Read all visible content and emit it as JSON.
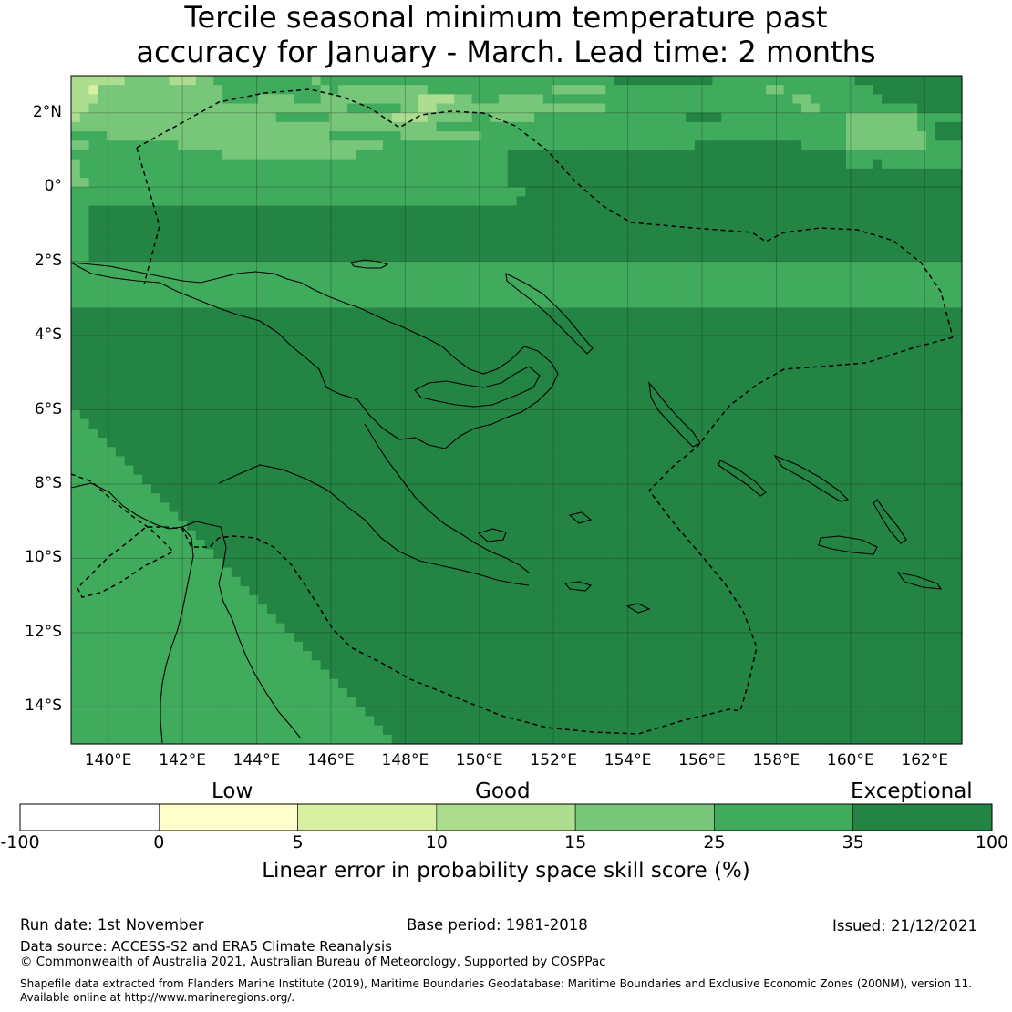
{
  "title": {
    "line1": "Tercile seasonal minimum temperature past",
    "line2": "accuracy for January - March. Lead time: 2 months"
  },
  "map": {
    "lon_ticks": [
      "140°E",
      "142°E",
      "144°E",
      "146°E",
      "148°E",
      "150°E",
      "152°E",
      "154°E",
      "156°E",
      "158°E",
      "160°E",
      "162°E"
    ],
    "lat_ticks": [
      "2°N",
      "0°",
      "2°S",
      "4°S",
      "6°S",
      "8°S",
      "10°S",
      "12°S",
      "14°S"
    ],
    "extent": {
      "lon": [
        139,
        163
      ],
      "lat": [
        -15,
        3
      ]
    },
    "grid": true,
    "palette": [
      "#ffffff",
      "#ffffcc",
      "#d9f0a3",
      "#addd8e",
      "#78c679",
      "#41ab5d",
      "#238443"
    ],
    "cell_rows": [
      "3333334444433344555555555554555555555555555555555555555555555666666666665555555555555555666666666666",
      "3324444444444444455555555555454444444444555555555555554444445555555555555555554455555555556666666666",
      "3334444444444444455554444555444444444443333445554444455555555555555555555555555554455555555666666666",
      "3344444444444444444444444444444555555443344444444444444444445555555555555555555555445555555555566666",
      "3444444444444444444444455555544444443333444445544444555555555555555556666555555555555554444444455555",
      "4444444444444444444444444444444444444444455555555555555555555555555555555555555555555554444444455666",
      "5555444444444444444444444444455555555444444444555555555555555555555555555555555555555554444444445666",
      "4455555555554444444444444444444444455555555555555555555555555555555555666666666666555554444444445555",
      "5555555555555555544444444444444455555555555555555666666666666666666666666666666666666665555555555555",
      "4555555555555555555555555555555555555555555555555666666666666666666666666666666666666665556555555555",
      "4555555555555555555555555555555555555555555555555666666666666666666666666666666666666666666666666666",
      "4455555555555555555555555555555555555555555555555666666666666666666666666666666666666666666666666666",
      "5555555555555555555555555555555555555555555555555556666666666666666666666666666666666666666666666666",
      "5555555555555555555555555555555555555555555555555566666666666666666666666666666666666666666666666666",
      "5566666666666666666666666666666666666666666666666666666666666666666666666666666666666666666666666666",
      "5566666666666666666666666666666666666666666666666666666666666666666666666666666666666666666666666666",
      "5566666666666666666666666666666666666666666666666666666666666666666666666666666666666666666666666666",
      "5566666666666666666666666666666666666666666666666666666666666666666666666666666666666666666666666666",
      "5566666666666666666666666666666666666666666666666666666666666666666666666666666666666666666666666666",
      "5566666666666666666666666666666666666666666666666666666666666666666666666666666666666666666666666666",
      "5555555555555555555555555555555555555555555555555555555555555555555555555555555555555555555555555555",
      "5555555555555555555555555555555555555555555555555555555555555555555555555555555555555555555555555555",
      "5555555555555555555555555555555555555555555555555555555555555555555555555555555555555555555555555555",
      "5555555555555555555555555555555555555555555555555555555555555555555555555555555555555555555555555555",
      "5555555555555555555555555555555555555555555555555555555555555555555555555555555555555555555555555555",
      "6666666666666666666666666666666666666666666666666666666666666666666666666666666666666666666666666666",
      "6666666666666666666666666666666666666666666666666666666666666666666666666666666666666666666666666666",
      "6666666666666666666666666666666666666666666666666666666666666666666666666666666666666666666666666666",
      "6666666666666666666666666666666666666666666666666666666666666666666666666666666666666666666666666666",
      "6666666666666666666666666666666666666666666666666666666666666666666666666666666666666666666666666666",
      "6666666666666666666666666666666666666666666666666666666666666666666666666666666666666666666666666666",
      "6666666666666666666666666666666666666666666666666666666666666666666666666666666666666666666666666666",
      "6666666666666666666666666666666666666666666666666666666666666666666666666666666666666666666666666666",
      "6666666666666666666666666666666666666666666666666666666666666666666666666666666666666666666666666666",
      "6666666666666666666666666666666666666666666666666666666666666666666666666666666666666666666666666666",
      "6666666666666666666666666666666666666666666666666666666666666666666666666666666666666666666666666666",
      "5666666666666666666666666666666666666666666666666666666666666666666666666666666666666666666666666666",
      "5566666666666666666666666666666666666666666666666666666666666666666666666666666666666666666666666666",
      "5556666666666666666666666666666666666666666666666666666666666666666666666666666666666666666666666666",
      "5555666666666666666666666666666666666666666666666666666666666666666666666666666666666666666666666666",
      "5555566666666666666666666666666666666666666666666666666666666666666666666666666666666666666666666666",
      "5555556666666666666666666666666666666666666666666666666666666666666666666666666666666666666666666666",
      "5555555666666666666666666666666666666666666666666666666666666666666666666666666666666666666666666666",
      "5555555566666666666666666666666666666666666666666666666666666666666666666666666666666666666666666666",
      "5555555556666666666666666666666666666666666666666666666666666666666666666666666666666666666666666666",
      "5555555555666666666666666666666666666666666666666666666666666666666666666666666666666666666666666666",
      "5555555555566666666666666666666666666666666666666666666666666666666666666666666666666666666666666666",
      "5555555555556666666666666666666666666666666666666666666666666666666666666666666666666666666666666666",
      "5555555555555666666666666666666666666666666666666666666666666666666666666666666666666666666666666666",
      "5555555555555566666666666666666666666666666666666666666666666666666666666666666666666666666666666666",
      "5555555555555556666666666666666666666666666666666666666666666666666666666666666666666666666666666666",
      "5555555555555555666666666666666666666666666666666666666666666666666666666666666666666666666666666666",
      "5555555555555555566666666666666666666666666666666666666666666666666666666666666666666666666666666666",
      "5555555555555555556666666666666666666666666666666666666666666666666666666666666666666666666666666666",
      "5555555555555555555666666666666666666666666666666666666666666666666666666666666666666666666666666666",
      "5555555555555555555566666666666666666666666666666666666666666666666666666666666666666666666666666666",
      "5555555555555555555556666666666666666666666666666666666666666666666666666666666666666666666666666666",
      "5555555555555555555555666666666666666666666666666666666666666666666666666666666666666666666666666666",
      "5555555555555555555555566666666666666666666666666666666666666666666666666666666666666666666666666666",
      "5555555555555555555555556666666666666666666666666666666666666666666666666666666666666666666666666666",
      "5555555555555555555555555666666666666666666666666666666666666666666666666666666666666666666666666666",
      "5555555555555555555555555566666666666666666666666666666666666666666666666666666666666666666666666666",
      "5555555555555555555555555556666666666666666666666666666666666666666666666666666666666666666666666666",
      "5555555555555555555555555555666666666666666666666666666666666666666666666666666666666666666666666666",
      "5555555555555555555555555555566666666666666666666666666666666666666666666666666666666666666666666666",
      "5555555555555555555555555555556666666666666666666666666666666666666666666666666666666666666666666666",
      "5555555555555555555555555555555666666666666666666666666666666666666666666666666666666666666666666666",
      "5555555555555555555555555555555566666666666666666666666666666666666666666666666666666666666666666666",
      "5555555555555555555555555555555556666666666666666666666666666666666666666666666666666666666666666666",
      "5555555555555555555555555555555555666666666666666666666666666666666666666666666666666666666666666666",
      "5555555555555555555555555555555555566666666666666666666666666666666666666666666666666666666666666666",
      "5555555555555555555555555555555555556666666666666666666666666666666666666666666666666666666666666666"
    ]
  },
  "colorbar": {
    "categories": [
      "Low",
      "Good",
      "Exceptional"
    ],
    "bounds": [
      "-100",
      "0",
      "5",
      "10",
      "15",
      "25",
      "35",
      "100"
    ],
    "colors": [
      "#ffffff",
      "#ffffcc",
      "#d9f0a3",
      "#addd8e",
      "#78c679",
      "#41ab5d",
      "#238443"
    ],
    "title": "Linear error in probability space skill score (%)"
  },
  "footer": {
    "run_date": "Run date: 1st November",
    "base_period": "Base period: 1981-2018",
    "issued": "Issued: 21/12/2021",
    "data_source": "Data source: ACCESS-S2 and ERA5 Climate Reanalysis",
    "copyright": "© Commonwealth of Australia 2021, Australian Bureau of Meteorology, Supported by COSPPac",
    "shapefile_line1": "Shapefile data extracted from Flanders Marine Institute (2019), Maritime Boundaries Geodatabase: Maritime Boundaries and Exclusive Economic Zones (200NM), version 11.",
    "shapefile_line2": "Available online at http://www.marineregions.org/."
  }
}
